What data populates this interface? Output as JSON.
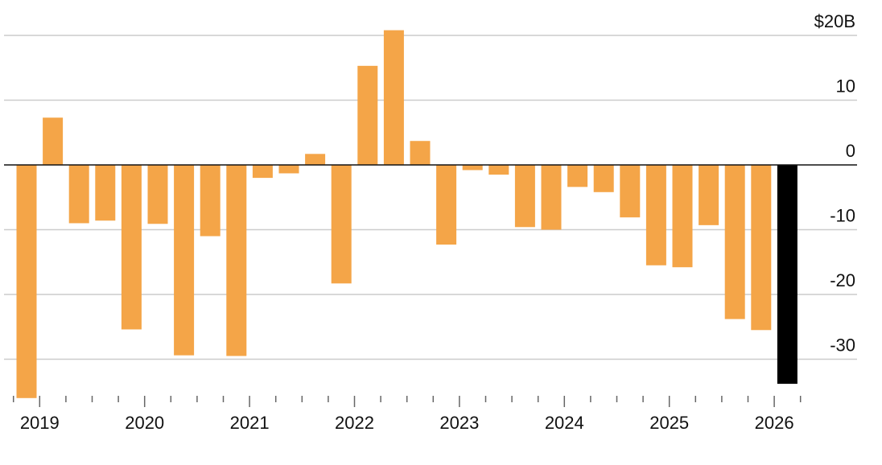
{
  "chart_data": {
    "type": "bar",
    "title": "",
    "xlabel": "",
    "ylabel": "",
    "unit_prefix": "$",
    "unit_suffix": "B",
    "ylim": [
      -36,
      21
    ],
    "y_ticks": [
      {
        "value": 20,
        "label": "$20B"
      },
      {
        "value": 10,
        "label": "10"
      },
      {
        "value": 0,
        "label": "0"
      },
      {
        "value": -10,
        "label": "-10"
      },
      {
        "value": -20,
        "label": "-20"
      },
      {
        "value": -30,
        "label": "-30"
      }
    ],
    "x_year_labels": [
      "2019",
      "2020",
      "2021",
      "2022",
      "2023",
      "2024",
      "2025",
      "2026"
    ],
    "colors": {
      "default": "#F4A548",
      "highlight": "#000000",
      "grid": "#cccccc",
      "zero": "#111111"
    },
    "bars": [
      {
        "period": "2018 Q4",
        "value": -36,
        "highlight": false
      },
      {
        "period": "2019 Q1",
        "value": 7.3,
        "highlight": false
      },
      {
        "period": "2019 Q2",
        "value": -9,
        "highlight": false
      },
      {
        "period": "2019 Q3",
        "value": -8.6,
        "highlight": false
      },
      {
        "period": "2019 Q4",
        "value": -25.4,
        "highlight": false
      },
      {
        "period": "2020 Q1",
        "value": -9.1,
        "highlight": false
      },
      {
        "period": "2020 Q2",
        "value": -29.4,
        "highlight": false
      },
      {
        "period": "2020 Q3",
        "value": -11,
        "highlight": false
      },
      {
        "period": "2020 Q4",
        "value": -29.5,
        "highlight": false
      },
      {
        "period": "2021 Q1",
        "value": -2,
        "highlight": false
      },
      {
        "period": "2021 Q2",
        "value": -1.3,
        "highlight": false
      },
      {
        "period": "2021 Q3",
        "value": 1.7,
        "highlight": false
      },
      {
        "period": "2021 Q4",
        "value": -18.3,
        "highlight": false
      },
      {
        "period": "2022 Q1",
        "value": 15.3,
        "highlight": false
      },
      {
        "period": "2022 Q2",
        "value": 20.8,
        "highlight": false
      },
      {
        "period": "2022 Q3",
        "value": 3.7,
        "highlight": false
      },
      {
        "period": "2022 Q4",
        "value": -12.3,
        "highlight": false
      },
      {
        "period": "2023 Q1",
        "value": -0.8,
        "highlight": false
      },
      {
        "period": "2023 Q2",
        "value": -1.5,
        "highlight": false
      },
      {
        "period": "2023 Q3",
        "value": -9.6,
        "highlight": false
      },
      {
        "period": "2023 Q4",
        "value": -10,
        "highlight": false
      },
      {
        "period": "2024 Q1",
        "value": -3.4,
        "highlight": false
      },
      {
        "period": "2024 Q2",
        "value": -4.2,
        "highlight": false
      },
      {
        "period": "2024 Q3",
        "value": -8.1,
        "highlight": false
      },
      {
        "period": "2024 Q4",
        "value": -15.5,
        "highlight": false
      },
      {
        "period": "2025 Q1",
        "value": -15.8,
        "highlight": false
      },
      {
        "period": "2025 Q2",
        "value": -9.3,
        "highlight": false
      },
      {
        "period": "2025 Q3",
        "value": -23.8,
        "highlight": false
      },
      {
        "period": "2025 Q4",
        "value": -25.5,
        "highlight": false
      },
      {
        "period": "2026 Q1",
        "value": -33.8,
        "highlight": true
      }
    ]
  }
}
